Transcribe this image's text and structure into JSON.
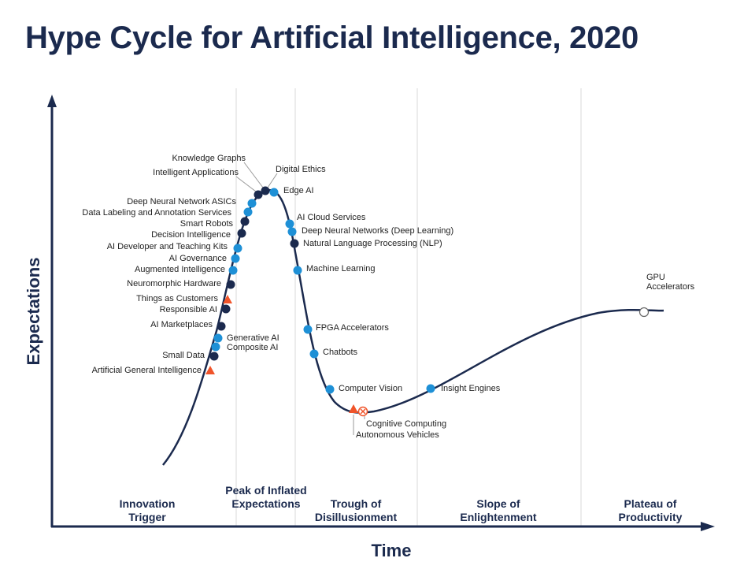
{
  "title": "Hype Cycle for Artificial Intelligence, 2020",
  "axes": {
    "y": "Expectations",
    "x": "Time"
  },
  "phases": [
    "Innovation Trigger",
    "Peak of Inflated Expectations",
    "Trough of Disillusionment",
    "Slope of Enlightenment",
    "Plateau of Productivity"
  ],
  "technologies": [
    {
      "label": "Knowledge Graphs"
    },
    {
      "label": "Intelligent Applications"
    },
    {
      "label": "Digital Ethics"
    },
    {
      "label": "Edge AI"
    },
    {
      "label": "Deep Neural Network ASICs"
    },
    {
      "label": "Data Labeling and Annotation Services"
    },
    {
      "label": "Smart Robots"
    },
    {
      "label": "Decision Intelligence"
    },
    {
      "label": "AI Developer and Teaching Kits"
    },
    {
      "label": "AI Governance"
    },
    {
      "label": "Augmented Intelligence"
    },
    {
      "label": "Neuromorphic Hardware"
    },
    {
      "label": "Things as Customers"
    },
    {
      "label": "Responsible AI"
    },
    {
      "label": "AI Marketplaces"
    },
    {
      "label": "Generative AI"
    },
    {
      "label": "Composite AI"
    },
    {
      "label": "Small Data"
    },
    {
      "label": "Artificial General Intelligence"
    },
    {
      "label": "AI Cloud Services"
    },
    {
      "label": "Deep Neural Networks (Deep Learning)"
    },
    {
      "label": "Natural Language Processing (NLP)"
    },
    {
      "label": "Machine Learning"
    },
    {
      "label": "FPGA Accelerators"
    },
    {
      "label": "Chatbots"
    },
    {
      "label": "Computer Vision"
    },
    {
      "label": "Cognitive Computing"
    },
    {
      "label": "Autonomous Vehicles"
    },
    {
      "label": "Insight Engines"
    },
    {
      "label": "GPU Accelerators"
    }
  ]
}
